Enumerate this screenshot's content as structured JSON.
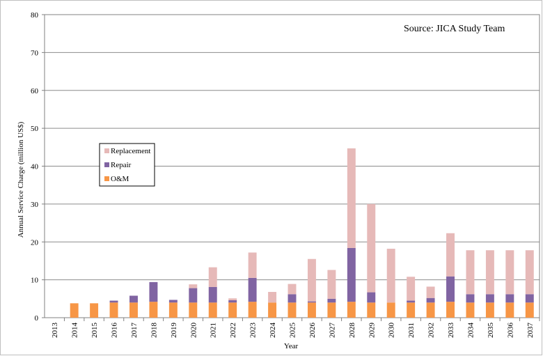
{
  "chart_data": {
    "type": "bar",
    "stacked": true,
    "annotation": "Source: JICA Study Team",
    "xlabel": "Year",
    "ylabel": "Annual Service Charge (million US$)",
    "ylim": [
      0,
      80
    ],
    "yticks": [
      0,
      10,
      20,
      30,
      40,
      50,
      60,
      70,
      80
    ],
    "grid": true,
    "legend_position": "upper-left",
    "categories": [
      "2013",
      "2014",
      "2015",
      "2016",
      "2017",
      "2018",
      "2019",
      "2020",
      "2021",
      "2022",
      "2023",
      "2024",
      "2025",
      "2026",
      "2027",
      "2028",
      "2029",
      "2030",
      "2031",
      "2032",
      "2033",
      "2034",
      "2035",
      "2036",
      "2037"
    ],
    "series": [
      {
        "name": "O&M",
        "color": "#F79646",
        "values": [
          0,
          3.8,
          3.8,
          4.0,
          4.0,
          4.2,
          4.0,
          4.0,
          4.0,
          4.0,
          4.2,
          4.0,
          4.0,
          4.0,
          4.0,
          4.2,
          4.0,
          4.0,
          4.0,
          4.0,
          4.2,
          4.0,
          4.0,
          4.0,
          4.0
        ]
      },
      {
        "name": "Repair",
        "color": "#8064A2",
        "values": [
          0,
          0,
          0,
          0.5,
          1.8,
          5.2,
          0.7,
          3.8,
          4.1,
          0.6,
          6.3,
          0,
          2.2,
          0.3,
          1.0,
          14.2,
          2.7,
          0,
          0.5,
          1.2,
          6.7,
          2.2,
          2.2,
          2.2,
          2.2
        ]
      },
      {
        "name": "Replacement",
        "color": "#E6B9B8",
        "values": [
          0,
          0,
          0,
          0,
          0,
          0,
          0,
          1.0,
          5.2,
          0.5,
          6.7,
          2.8,
          2.7,
          11.2,
          7.6,
          26.3,
          23.3,
          14.2,
          6.3,
          3.0,
          11.4,
          11.6,
          11.6,
          11.6,
          11.6
        ]
      }
    ]
  }
}
